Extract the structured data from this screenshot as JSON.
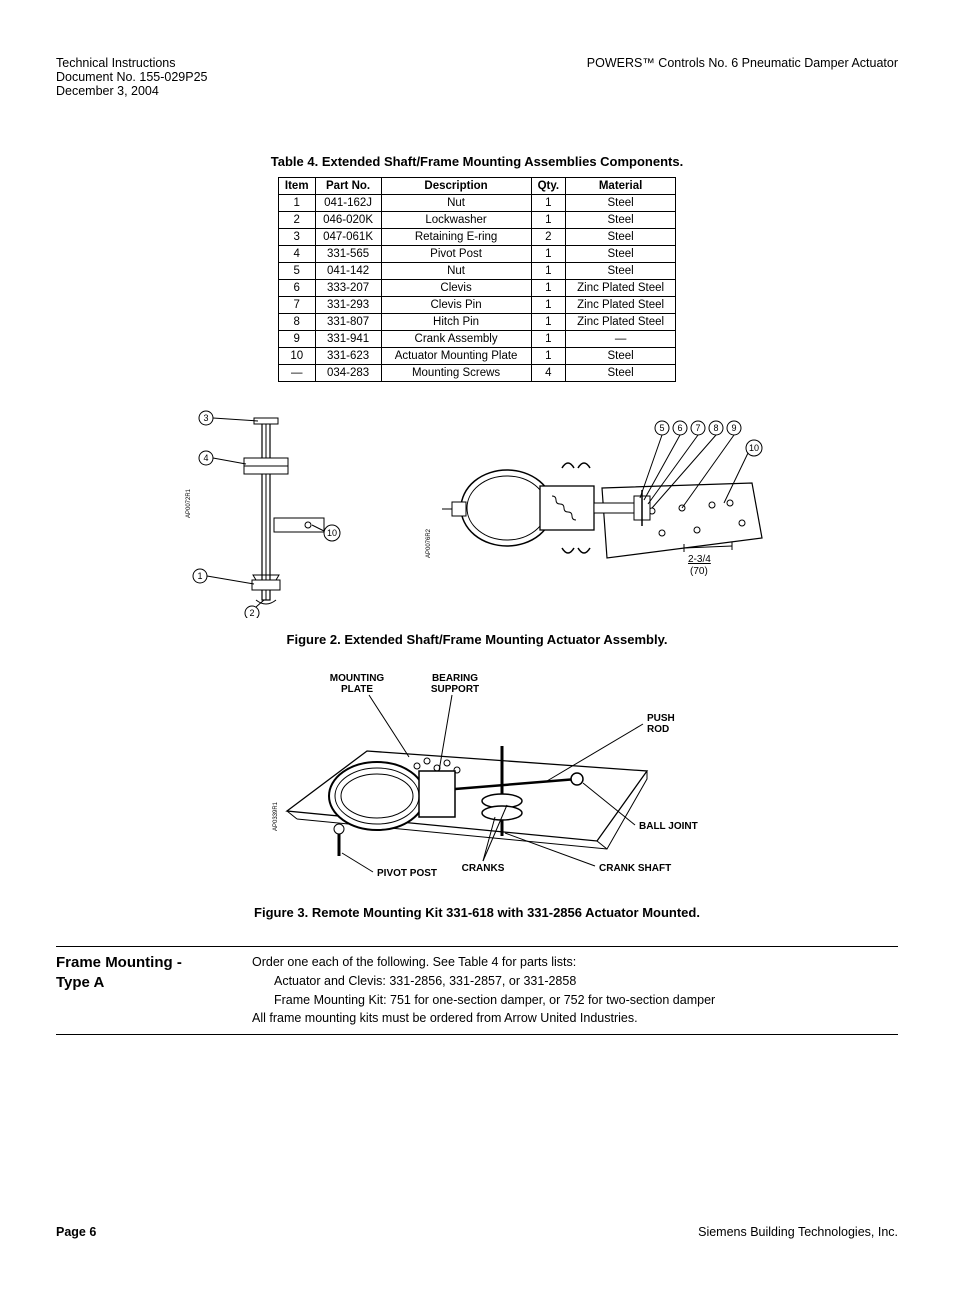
{
  "header": {
    "left": {
      "line1": "Technical Instructions",
      "line2": "Document No. 155-029P25",
      "line3": "December 3, 2004"
    },
    "right": "POWERS™ Controls No. 6 Pneumatic Damper Actuator"
  },
  "table4": {
    "caption": "Table 4.  Extended Shaft/Frame Mounting Assemblies Components.",
    "columns": [
      "Item",
      "Part No.",
      "Description",
      "Qty.",
      "Material"
    ],
    "rows": [
      [
        "1",
        "041-162J",
        "Nut",
        "1",
        "Steel"
      ],
      [
        "2",
        "046-020K",
        "Lockwasher",
        "1",
        "Steel"
      ],
      [
        "3",
        "047-061K",
        "Retaining E-ring",
        "2",
        "Steel"
      ],
      [
        "4",
        "331-565",
        "Pivot Post",
        "1",
        "Steel"
      ],
      [
        "5",
        "041-142",
        "Nut",
        "1",
        "Steel"
      ],
      [
        "6",
        "333-207",
        "Clevis",
        "1",
        "Zinc Plated Steel"
      ],
      [
        "7",
        "331-293",
        "Clevis Pin",
        "1",
        "Zinc Plated Steel"
      ],
      [
        "8",
        "331-807",
        "Hitch Pin",
        "1",
        "Zinc Plated Steel"
      ],
      [
        "9",
        "331-941",
        "Crank Assembly",
        "1",
        "—"
      ],
      [
        "10",
        "331-623",
        "Actuator Mounting Plate",
        "1",
        "Steel"
      ],
      [
        "—",
        "034-283",
        "Mounting Screws",
        "4",
        "Steel"
      ]
    ]
  },
  "figure2": {
    "caption": "Figure 2.  Extended Shaft/Frame Mounting Actuator Assembly.",
    "left": {
      "code": "AP0072R1",
      "callouts": [
        "1",
        "2",
        "3",
        "4",
        "10"
      ]
    },
    "right": {
      "code": "AP0076R2",
      "callouts": [
        "5",
        "6",
        "7",
        "8",
        "9",
        "10"
      ],
      "dim_top": "2-3/4",
      "dim_bottom": "(70)"
    }
  },
  "figure3": {
    "caption": "Figure 3.  Remote Mounting Kit 331-618 with 331-2856 Actuator Mounted.",
    "code": "AP0339R1",
    "labels": {
      "mounting_plate_l1": "MOUNTING",
      "mounting_plate_l2": "PLATE",
      "bearing_l1": "BEARING",
      "bearing_l2": "SUPPORT",
      "push_rod_l1": "PUSH",
      "push_rod_l2": "ROD",
      "ball_joint": "BALL JOINT",
      "crank_shaft": "CRANK SHAFT",
      "cranks": "CRANKS",
      "pivot_post": "PIVOT POST"
    }
  },
  "section": {
    "heading_l1": "Frame Mounting -",
    "heading_l2": "Type A",
    "intro": "Order one each of the following. See Table 4 for parts lists:",
    "bullet1": "Actuator and Clevis: 331-2856, 331-2857, or 331-2858",
    "bullet2": "Frame Mounting Kit: 751 for one-section damper, or 752 for two-section damper",
    "outro": "All frame mounting kits must be ordered from Arrow United Industries."
  },
  "footer": {
    "left": "Page 6",
    "right": "Siemens Building Technologies, Inc."
  },
  "colors": {
    "text": "#000000",
    "background": "#ffffff",
    "border": "#000000"
  }
}
